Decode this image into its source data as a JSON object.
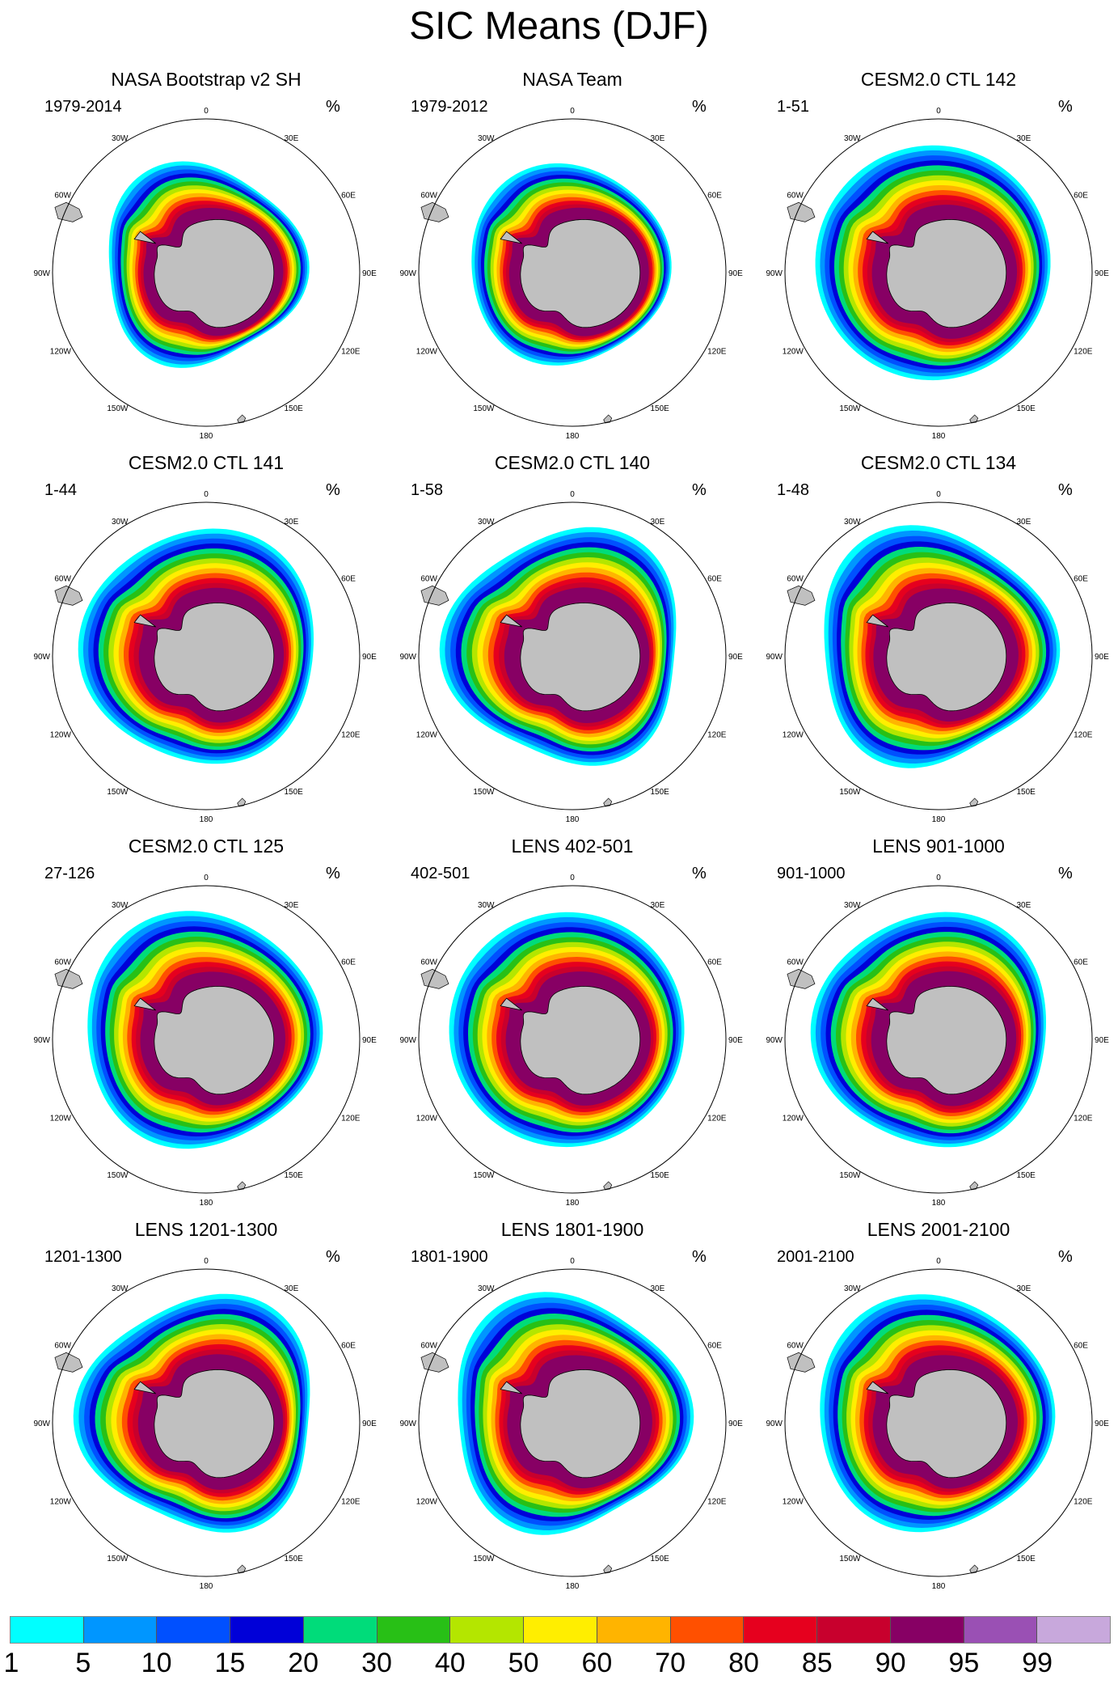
{
  "title": "SIC Means (DJF)",
  "unit_symbol": "%",
  "longitude_labels": [
    "0",
    "30E",
    "60E",
    "90E",
    "120E",
    "150E",
    "180",
    "150W",
    "120W",
    "90W",
    "60W",
    "30W"
  ],
  "colors": {
    "land": "#c0c0c0",
    "boundary": "#000000",
    "levels": [
      "#00ffff",
      "#0096ff",
      "#0050ff",
      "#0000d8",
      "#00dc7a",
      "#28c016",
      "#b4e600",
      "#ffee00",
      "#ffb400",
      "#ff5000",
      "#e6001e",
      "#c8002d",
      "#870064",
      "#9a50b4",
      "#c8a8dc"
    ]
  },
  "panels": [
    {
      "title": "NASA Bootstrap v2 SH",
      "period": "1979-2014"
    },
    {
      "title": "NASA Team",
      "period": "1979-2012"
    },
    {
      "title": "CESM2.0 CTL 142",
      "period": "1-51"
    },
    {
      "title": "CESM2.0 CTL 141",
      "period": "1-44"
    },
    {
      "title": "CESM2.0 CTL 140",
      "period": "1-58"
    },
    {
      "title": "CESM2.0 CTL 134",
      "period": "1-48"
    },
    {
      "title": "CESM2.0 CTL 125",
      "period": "27-126"
    },
    {
      "title": "LENS 402-501",
      "period": "402-501"
    },
    {
      "title": "LENS 901-1000",
      "period": "901-1000"
    },
    {
      "title": "LENS 1201-1300",
      "period": "1201-1300"
    },
    {
      "title": "LENS 1801-1900",
      "period": "1801-1900"
    },
    {
      "title": "LENS 2001-2100",
      "period": "2001-2100"
    }
  ],
  "colorbar": {
    "labels": [
      "1",
      "5",
      "10",
      "15",
      "20",
      "30",
      "40",
      "50",
      "60",
      "70",
      "80",
      "85",
      "90",
      "95",
      "99"
    ]
  }
}
